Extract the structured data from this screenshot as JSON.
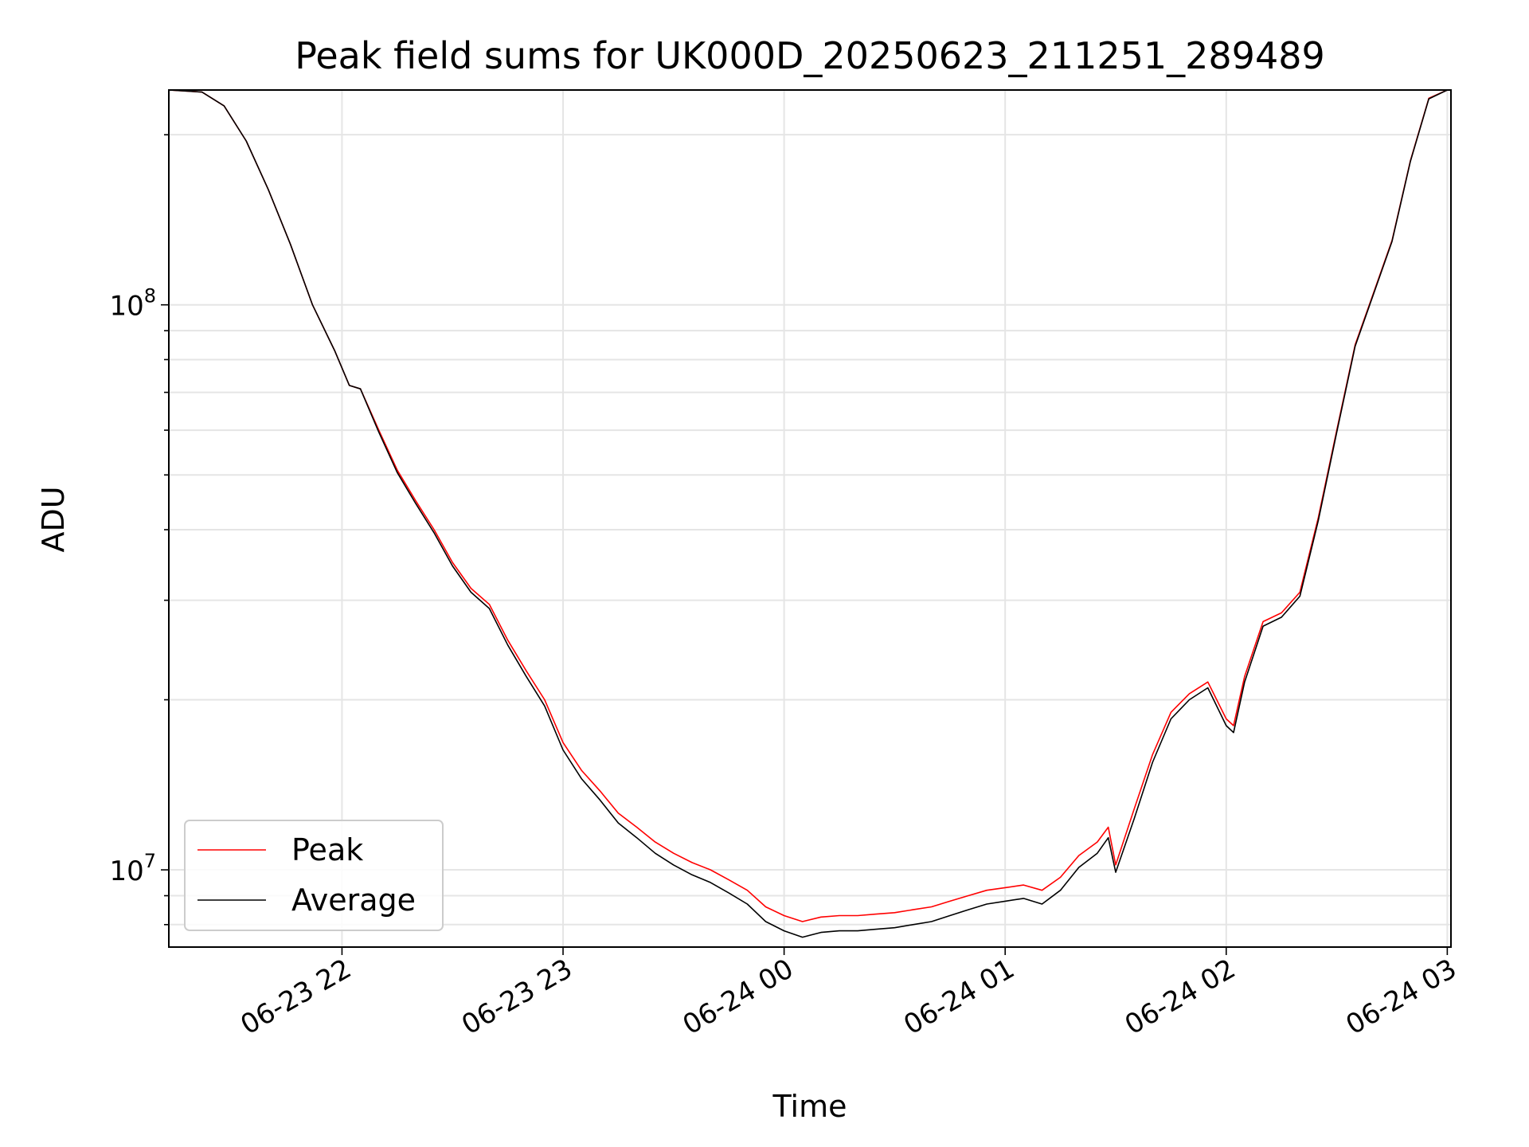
{
  "chart_data": {
    "type": "line",
    "title": "Peak field sums for UK000D_20250623_211251_289489",
    "xlabel": "Time",
    "ylabel": "ADU",
    "yscale": "log",
    "grid": true,
    "xlim": [
      "2025-06-23T21:13:00",
      "2025-06-24T03:01:00"
    ],
    "ylim": [
      7300000,
      240000000
    ],
    "xticks": [
      {
        "t": "2025-06-23T22:00:00",
        "label": "06-23 22"
      },
      {
        "t": "2025-06-23T23:00:00",
        "label": "06-23 23"
      },
      {
        "t": "2025-06-24T00:00:00",
        "label": "06-24 00"
      },
      {
        "t": "2025-06-24T01:00:00",
        "label": "06-24 01"
      },
      {
        "t": "2025-06-24T02:00:00",
        "label": "06-24 02"
      },
      {
        "t": "2025-06-24T03:00:00",
        "label": "06-24 03"
      }
    ],
    "yticks": [
      {
        "value": 10000000,
        "base": "10",
        "exp": "7"
      },
      {
        "value": 100000000,
        "base": "10",
        "exp": "8"
      }
    ],
    "legend": {
      "position": "lower-left"
    },
    "colors": {
      "Peak": "#ff0000",
      "Average": "#000000"
    },
    "series": [
      {
        "name": "Peak",
        "color": "#ff0000",
        "points": [
          [
            "2025-06-23T21:13:00",
            240000000
          ],
          [
            "2025-06-23T21:22:00",
            238000000
          ],
          [
            "2025-06-23T21:28:00",
            225000000
          ],
          [
            "2025-06-23T21:34:00",
            195000000
          ],
          [
            "2025-06-23T21:40:00",
            160000000
          ],
          [
            "2025-06-23T21:46:00",
            128000000
          ],
          [
            "2025-06-23T21:52:00",
            100000000
          ],
          [
            "2025-06-23T21:58:00",
            83000000
          ],
          [
            "2025-06-23T22:02:00",
            72000000
          ],
          [
            "2025-06-23T22:05:00",
            71000000
          ],
          [
            "2025-06-23T22:10:00",
            60000000
          ],
          [
            "2025-06-23T22:15:00",
            51000000
          ],
          [
            "2025-06-23T22:20:00",
            45000000
          ],
          [
            "2025-06-23T22:25:00",
            40000000
          ],
          [
            "2025-06-23T22:30:00",
            35000000
          ],
          [
            "2025-06-23T22:35:00",
            31500000
          ],
          [
            "2025-06-23T22:40:00",
            29500000
          ],
          [
            "2025-06-23T22:45:00",
            25500000
          ],
          [
            "2025-06-23T22:50:00",
            22500000
          ],
          [
            "2025-06-23T22:55:00",
            20000000
          ],
          [
            "2025-06-23T23:00:00",
            16800000
          ],
          [
            "2025-06-23T23:05:00",
            15000000
          ],
          [
            "2025-06-23T23:10:00",
            13800000
          ],
          [
            "2025-06-23T23:15:00",
            12600000
          ],
          [
            "2025-06-23T23:20:00",
            11900000
          ],
          [
            "2025-06-23T23:25:00",
            11200000
          ],
          [
            "2025-06-23T23:30:00",
            10700000
          ],
          [
            "2025-06-23T23:35:00",
            10300000
          ],
          [
            "2025-06-23T23:40:00",
            10000000
          ],
          [
            "2025-06-23T23:45:00",
            9600000
          ],
          [
            "2025-06-23T23:50:00",
            9200000
          ],
          [
            "2025-06-23T23:55:00",
            8600000
          ],
          [
            "2025-06-24T00:00:00",
            8300000
          ],
          [
            "2025-06-24T00:05:00",
            8100000
          ],
          [
            "2025-06-24T00:10:00",
            8250000
          ],
          [
            "2025-06-24T00:15:00",
            8300000
          ],
          [
            "2025-06-24T00:20:00",
            8300000
          ],
          [
            "2025-06-24T00:25:00",
            8350000
          ],
          [
            "2025-06-24T00:30:00",
            8400000
          ],
          [
            "2025-06-24T00:35:00",
            8500000
          ],
          [
            "2025-06-24T00:40:00",
            8600000
          ],
          [
            "2025-06-24T00:45:00",
            8800000
          ],
          [
            "2025-06-24T00:50:00",
            9000000
          ],
          [
            "2025-06-24T00:55:00",
            9200000
          ],
          [
            "2025-06-24T01:00:00",
            9300000
          ],
          [
            "2025-06-24T01:05:00",
            9400000
          ],
          [
            "2025-06-24T01:10:00",
            9200000
          ],
          [
            "2025-06-24T01:15:00",
            9700000
          ],
          [
            "2025-06-24T01:20:00",
            10600000
          ],
          [
            "2025-06-24T01:25:00",
            11200000
          ],
          [
            "2025-06-24T01:28:00",
            11900000
          ],
          [
            "2025-06-24T01:30:00",
            10200000
          ],
          [
            "2025-06-24T01:35:00",
            12800000
          ],
          [
            "2025-06-24T01:40:00",
            16000000
          ],
          [
            "2025-06-24T01:45:00",
            19000000
          ],
          [
            "2025-06-24T01:50:00",
            20500000
          ],
          [
            "2025-06-24T01:55:00",
            21500000
          ],
          [
            "2025-06-24T02:00:00",
            18500000
          ],
          [
            "2025-06-24T02:02:00",
            18000000
          ],
          [
            "2025-06-24T02:05:00",
            22000000
          ],
          [
            "2025-06-24T02:10:00",
            27500000
          ],
          [
            "2025-06-24T02:15:00",
            28500000
          ],
          [
            "2025-06-24T02:20:00",
            31000000
          ],
          [
            "2025-06-24T02:25:00",
            42000000
          ],
          [
            "2025-06-24T02:30:00",
            60000000
          ],
          [
            "2025-06-24T02:35:00",
            85000000
          ],
          [
            "2025-06-24T02:40:00",
            105000000
          ],
          [
            "2025-06-24T02:45:00",
            130000000
          ],
          [
            "2025-06-24T02:50:00",
            180000000
          ],
          [
            "2025-06-24T02:55:00",
            232000000
          ],
          [
            "2025-06-24T03:00:00",
            240000000
          ]
        ]
      },
      {
        "name": "Average",
        "color": "#000000",
        "points": [
          [
            "2025-06-23T21:13:00",
            240000000
          ],
          [
            "2025-06-23T21:22:00",
            238000000
          ],
          [
            "2025-06-23T21:28:00",
            225000000
          ],
          [
            "2025-06-23T21:34:00",
            195000000
          ],
          [
            "2025-06-23T21:40:00",
            160000000
          ],
          [
            "2025-06-23T21:46:00",
            128000000
          ],
          [
            "2025-06-23T21:52:00",
            100000000
          ],
          [
            "2025-06-23T21:58:00",
            83000000
          ],
          [
            "2025-06-23T22:02:00",
            72000000
          ],
          [
            "2025-06-23T22:05:00",
            71000000
          ],
          [
            "2025-06-23T22:10:00",
            59500000
          ],
          [
            "2025-06-23T22:15:00",
            50500000
          ],
          [
            "2025-06-23T22:20:00",
            44500000
          ],
          [
            "2025-06-23T22:25:00",
            39500000
          ],
          [
            "2025-06-23T22:30:00",
            34500000
          ],
          [
            "2025-06-23T22:35:00",
            31000000
          ],
          [
            "2025-06-23T22:40:00",
            29000000
          ],
          [
            "2025-06-23T22:45:00",
            25000000
          ],
          [
            "2025-06-23T22:50:00",
            22000000
          ],
          [
            "2025-06-23T22:55:00",
            19500000
          ],
          [
            "2025-06-23T23:00:00",
            16300000
          ],
          [
            "2025-06-23T23:05:00",
            14500000
          ],
          [
            "2025-06-23T23:10:00",
            13300000
          ],
          [
            "2025-06-23T23:15:00",
            12100000
          ],
          [
            "2025-06-23T23:20:00",
            11400000
          ],
          [
            "2025-06-23T23:25:00",
            10700000
          ],
          [
            "2025-06-23T23:30:00",
            10200000
          ],
          [
            "2025-06-23T23:35:00",
            9800000
          ],
          [
            "2025-06-23T23:40:00",
            9500000
          ],
          [
            "2025-06-23T23:45:00",
            9100000
          ],
          [
            "2025-06-23T23:50:00",
            8700000
          ],
          [
            "2025-06-23T23:55:00",
            8100000
          ],
          [
            "2025-06-24T00:00:00",
            7800000
          ],
          [
            "2025-06-24T00:05:00",
            7600000
          ],
          [
            "2025-06-24T00:10:00",
            7750000
          ],
          [
            "2025-06-24T00:15:00",
            7800000
          ],
          [
            "2025-06-24T00:20:00",
            7800000
          ],
          [
            "2025-06-24T00:25:00",
            7850000
          ],
          [
            "2025-06-24T00:30:00",
            7900000
          ],
          [
            "2025-06-24T00:35:00",
            8000000
          ],
          [
            "2025-06-24T00:40:00",
            8100000
          ],
          [
            "2025-06-24T00:45:00",
            8300000
          ],
          [
            "2025-06-24T00:50:00",
            8500000
          ],
          [
            "2025-06-24T00:55:00",
            8700000
          ],
          [
            "2025-06-24T01:00:00",
            8800000
          ],
          [
            "2025-06-24T01:05:00",
            8900000
          ],
          [
            "2025-06-24T01:10:00",
            8700000
          ],
          [
            "2025-06-24T01:15:00",
            9200000
          ],
          [
            "2025-06-24T01:20:00",
            10100000
          ],
          [
            "2025-06-24T01:25:00",
            10700000
          ],
          [
            "2025-06-24T01:28:00",
            11400000
          ],
          [
            "2025-06-24T01:30:00",
            9900000
          ],
          [
            "2025-06-24T01:35:00",
            12300000
          ],
          [
            "2025-06-24T01:40:00",
            15500000
          ],
          [
            "2025-06-24T01:45:00",
            18500000
          ],
          [
            "2025-06-24T01:50:00",
            20000000
          ],
          [
            "2025-06-24T01:55:00",
            21000000
          ],
          [
            "2025-06-24T02:00:00",
            18000000
          ],
          [
            "2025-06-24T02:02:00",
            17500000
          ],
          [
            "2025-06-24T02:05:00",
            21500000
          ],
          [
            "2025-06-24T02:10:00",
            27000000
          ],
          [
            "2025-06-24T02:15:00",
            28000000
          ],
          [
            "2025-06-24T02:20:00",
            30500000
          ],
          [
            "2025-06-24T02:25:00",
            41500000
          ],
          [
            "2025-06-24T02:30:00",
            59500000
          ],
          [
            "2025-06-24T02:35:00",
            84500000
          ],
          [
            "2025-06-24T02:40:00",
            104500000
          ],
          [
            "2025-06-24T02:45:00",
            129500000
          ],
          [
            "2025-06-24T02:50:00",
            179500000
          ],
          [
            "2025-06-24T02:55:00",
            231500000
          ],
          [
            "2025-06-24T03:00:00",
            240000000
          ]
        ]
      }
    ]
  }
}
